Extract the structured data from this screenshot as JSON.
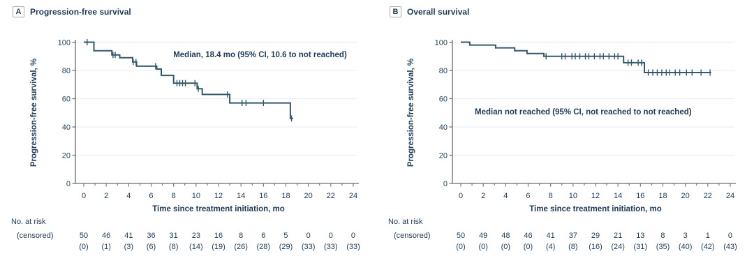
{
  "figure": {
    "colors": {
      "text": "#1f3b57",
      "curve": "#33596b",
      "axis": "#6b6b6b",
      "grid": "#eceff1",
      "box_border": "#a9adb3",
      "background": "#ffffff"
    }
  },
  "chart_data": [
    {
      "type": "line",
      "subtype": "kaplan-meier-step",
      "letter": "A",
      "title": "Progression-free survival",
      "annotation": "Median, 18.4 mo (95% CI, 10.6 to not reached)",
      "annotation_xy": [
        15.7,
        89.5
      ],
      "xlabel": "Time since treatment initiation, mo",
      "ylabel": "Progression-free survival, %",
      "xlim": [
        0,
        24
      ],
      "ylim": [
        0,
        100
      ],
      "xticks": [
        0,
        2,
        4,
        6,
        8,
        10,
        12,
        14,
        16,
        18,
        20,
        22,
        24
      ],
      "yticks": [
        0,
        20,
        40,
        60,
        80,
        100
      ],
      "grid": "horizontal-light",
      "legend": "none",
      "steps": [
        [
          0,
          100
        ],
        [
          0.9,
          100
        ],
        [
          0.9,
          94
        ],
        [
          2.5,
          94
        ],
        [
          2.5,
          91
        ],
        [
          3.2,
          91
        ],
        [
          3.2,
          89
        ],
        [
          4.35,
          89
        ],
        [
          4.35,
          86
        ],
        [
          4.7,
          86
        ],
        [
          4.7,
          83
        ],
        [
          6.5,
          83
        ],
        [
          6.5,
          81
        ],
        [
          6.9,
          81
        ],
        [
          6.9,
          76.5
        ],
        [
          8.0,
          76.5
        ],
        [
          8.0,
          71
        ],
        [
          10.1,
          71
        ],
        [
          10.1,
          67
        ],
        [
          10.55,
          67
        ],
        [
          10.55,
          63
        ],
        [
          13.0,
          63
        ],
        [
          13.0,
          57
        ],
        [
          18.4,
          57
        ],
        [
          18.4,
          46
        ],
        [
          18.65,
          46
        ]
      ],
      "censors": [
        [
          0.3,
          100
        ],
        [
          2.6,
          91
        ],
        [
          2.8,
          91
        ],
        [
          4.4,
          86
        ],
        [
          4.65,
          86
        ],
        [
          6.4,
          83
        ],
        [
          8.3,
          71
        ],
        [
          8.55,
          71
        ],
        [
          8.8,
          71
        ],
        [
          9.05,
          71
        ],
        [
          9.9,
          71
        ],
        [
          10.2,
          67
        ],
        [
          12.8,
          63
        ],
        [
          14.1,
          57
        ],
        [
          14.45,
          57
        ],
        [
          16.0,
          57
        ],
        [
          18.5,
          46
        ]
      ],
      "at_risk": {
        "row1_label": "No. at risk",
        "row2_label": "(censored)",
        "times": [
          0,
          2,
          4,
          6,
          8,
          10,
          12,
          14,
          16,
          18,
          20,
          22,
          24
        ],
        "counts": [
          "50",
          "46",
          "41",
          "36",
          "31",
          "23",
          "16",
          "8",
          "6",
          "5",
          "0",
          "0",
          "0"
        ],
        "censored": [
          "(0)",
          "(1)",
          "(3)",
          "(6)",
          "(8)",
          "(14)",
          "(19)",
          "(26)",
          "(28)",
          "(29)",
          "(33)",
          "(33)",
          "(33)"
        ]
      }
    },
    {
      "type": "line",
      "subtype": "kaplan-meier-step",
      "letter": "B",
      "title": "Overall survival",
      "annotation": "Median not reached (95% CI, not reached to not reached)",
      "annotation_xy": [
        10.9,
        49
      ],
      "xlabel": "Time since treatment initiation, mo",
      "ylabel": "Progression-free survival, %",
      "xlim": [
        0,
        24
      ],
      "ylim": [
        0,
        100
      ],
      "xticks": [
        0,
        2,
        4,
        6,
        8,
        10,
        12,
        14,
        16,
        18,
        20,
        22,
        24
      ],
      "yticks": [
        0,
        20,
        40,
        60,
        80,
        100
      ],
      "grid": "horizontal-light",
      "legend": "none",
      "steps": [
        [
          0,
          100
        ],
        [
          0.8,
          100
        ],
        [
          0.8,
          98
        ],
        [
          3.1,
          98
        ],
        [
          3.1,
          96
        ],
        [
          4.8,
          96
        ],
        [
          4.8,
          94
        ],
        [
          5.9,
          94
        ],
        [
          5.9,
          92
        ],
        [
          7.4,
          92
        ],
        [
          7.4,
          90
        ],
        [
          14.5,
          90
        ],
        [
          14.5,
          85.5
        ],
        [
          16.35,
          85.5
        ],
        [
          16.35,
          78.5
        ],
        [
          22.3,
          78.5
        ]
      ],
      "censors": [
        [
          7.6,
          90
        ],
        [
          9.0,
          90
        ],
        [
          9.3,
          90
        ],
        [
          9.9,
          90
        ],
        [
          10.2,
          90
        ],
        [
          10.6,
          90
        ],
        [
          11.1,
          90
        ],
        [
          11.4,
          90
        ],
        [
          11.9,
          90
        ],
        [
          12.4,
          90
        ],
        [
          12.7,
          90
        ],
        [
          13.2,
          90
        ],
        [
          13.7,
          90
        ],
        [
          14.0,
          90
        ],
        [
          14.9,
          85.5
        ],
        [
          15.2,
          85.5
        ],
        [
          15.8,
          85.5
        ],
        [
          16.1,
          85.5
        ],
        [
          16.7,
          78.5
        ],
        [
          17.1,
          78.5
        ],
        [
          17.5,
          78.5
        ],
        [
          17.9,
          78.5
        ],
        [
          18.3,
          78.5
        ],
        [
          18.6,
          78.5
        ],
        [
          19.1,
          78.5
        ],
        [
          19.5,
          78.5
        ],
        [
          20.1,
          78.5
        ],
        [
          20.6,
          78.5
        ],
        [
          21.4,
          78.5
        ],
        [
          22.2,
          78.5
        ]
      ],
      "at_risk": {
        "row1_label": "No. at risk",
        "row2_label": "(censored)",
        "times": [
          0,
          2,
          4,
          6,
          8,
          10,
          12,
          14,
          16,
          18,
          20,
          22,
          24
        ],
        "counts": [
          "50",
          "49",
          "48",
          "46",
          "41",
          "37",
          "29",
          "21",
          "13",
          "8",
          "3",
          "1",
          "0"
        ],
        "censored": [
          "(0)",
          "(0)",
          "(0)",
          "(0)",
          "(4)",
          "(8)",
          "(16)",
          "(24)",
          "(31)",
          "(35)",
          "(40)",
          "(42)",
          "(43)"
        ]
      }
    }
  ]
}
